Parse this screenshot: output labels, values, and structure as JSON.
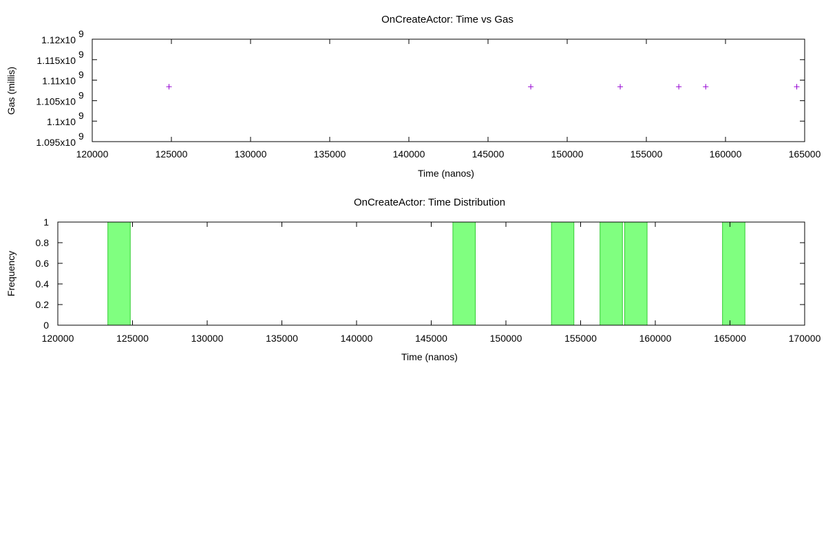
{
  "chart_data": [
    {
      "type": "scatter",
      "title": "OnCreateActor: Time vs Gas",
      "xlabel": "Time (nanos)",
      "ylabel": "Gas (millis)",
      "xlim": [
        120000,
        165000
      ],
      "ylim": [
        1095000000,
        1120000000
      ],
      "x_ticks": [
        {
          "value": 120000,
          "label": "120000"
        },
        {
          "value": 125000,
          "label": "125000"
        },
        {
          "value": 130000,
          "label": "130000"
        },
        {
          "value": 135000,
          "label": "135000"
        },
        {
          "value": 140000,
          "label": "140000"
        },
        {
          "value": 145000,
          "label": "145000"
        },
        {
          "value": 150000,
          "label": "150000"
        },
        {
          "value": 155000,
          "label": "155000"
        },
        {
          "value": 160000,
          "label": "160000"
        },
        {
          "value": 165000,
          "label": "165000"
        }
      ],
      "y_ticks": [
        {
          "value": 1095000000,
          "mantissa": "1.095x10",
          "exp": "9"
        },
        {
          "value": 1100000000,
          "mantissa": "1.1x10",
          "exp": "9"
        },
        {
          "value": 1105000000,
          "mantissa": "1.105x10",
          "exp": "9"
        },
        {
          "value": 1110000000,
          "mantissa": "1.11x10",
          "exp": "9"
        },
        {
          "value": 1115000000,
          "mantissa": "1.115x10",
          "exp": "9"
        },
        {
          "value": 1120000000,
          "mantissa": "1.12x10",
          "exp": "9"
        }
      ],
      "point_color": "#9400d3",
      "points": [
        {
          "x": 124850,
          "y": 1108400000
        },
        {
          "x": 147700,
          "y": 1108400000
        },
        {
          "x": 153350,
          "y": 1108400000
        },
        {
          "x": 157050,
          "y": 1108400000
        },
        {
          "x": 158750,
          "y": 1108400000
        },
        {
          "x": 164500,
          "y": 1108400000
        }
      ],
      "grid": false
    },
    {
      "type": "bar",
      "title": "OnCreateActor: Time Distribution",
      "xlabel": "Time (nanos)",
      "ylabel": "Frequency",
      "xlim": [
        120000,
        170000
      ],
      "ylim": [
        0,
        1
      ],
      "x_ticks": [
        {
          "value": 120000,
          "label": "120000"
        },
        {
          "value": 125000,
          "label": "125000"
        },
        {
          "value": 130000,
          "label": "130000"
        },
        {
          "value": 135000,
          "label": "135000"
        },
        {
          "value": 140000,
          "label": "140000"
        },
        {
          "value": 145000,
          "label": "145000"
        },
        {
          "value": 150000,
          "label": "150000"
        },
        {
          "value": 155000,
          "label": "155000"
        },
        {
          "value": 160000,
          "label": "160000"
        },
        {
          "value": 165000,
          "label": "165000"
        },
        {
          "value": 170000,
          "label": "170000"
        }
      ],
      "y_ticks": [
        {
          "value": 0,
          "label": "0"
        },
        {
          "value": 0.2,
          "label": "0.2"
        },
        {
          "value": 0.4,
          "label": "0.4"
        },
        {
          "value": 0.6,
          "label": "0.6"
        },
        {
          "value": 0.8,
          "label": "0.8"
        },
        {
          "value": 1,
          "label": "1"
        }
      ],
      "bar_fill": "#80ff80",
      "bar_stroke": "#33cc33",
      "bars": [
        {
          "x0": 123350,
          "x1": 124850,
          "value": 1
        },
        {
          "x0": 146450,
          "x1": 147950,
          "value": 1
        },
        {
          "x0": 153050,
          "x1": 154550,
          "value": 1
        },
        {
          "x0": 156300,
          "x1": 157800,
          "value": 1
        },
        {
          "x0": 157950,
          "x1": 159450,
          "value": 1
        },
        {
          "x0": 164500,
          "x1": 166000,
          "value": 1
        }
      ],
      "grid": false
    }
  ]
}
